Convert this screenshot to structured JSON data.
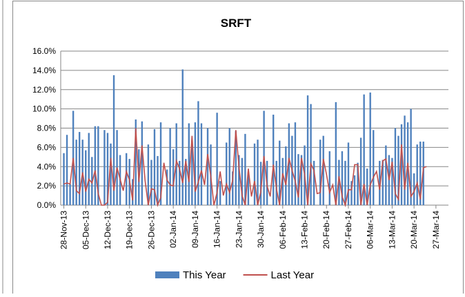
{
  "chart_data": {
    "type": "bar-line",
    "title": "SRFT",
    "x": [
      "2013-11-28",
      "2013-11-29",
      "2013-11-30",
      "2013-12-01",
      "2013-12-02",
      "2013-12-03",
      "2013-12-04",
      "2013-12-05",
      "2013-12-06",
      "2013-12-07",
      "2013-12-08",
      "2013-12-09",
      "2013-12-10",
      "2013-12-11",
      "2013-12-12",
      "2013-12-13",
      "2013-12-14",
      "2013-12-15",
      "2013-12-16",
      "2013-12-17",
      "2013-12-18",
      "2013-12-19",
      "2013-12-20",
      "2013-12-21",
      "2013-12-22",
      "2013-12-23",
      "2013-12-24",
      "2013-12-25",
      "2013-12-26",
      "2013-12-27",
      "2013-12-28",
      "2013-12-29",
      "2013-12-30",
      "2013-12-31",
      "2014-01-01",
      "2014-01-02",
      "2014-01-03",
      "2014-01-04",
      "2014-01-05",
      "2014-01-06",
      "2014-01-07",
      "2014-01-08",
      "2014-01-09",
      "2014-01-10",
      "2014-01-11",
      "2014-01-12",
      "2014-01-13",
      "2014-01-14",
      "2014-01-15",
      "2014-01-16",
      "2014-01-17",
      "2014-01-18",
      "2014-01-19",
      "2014-01-20",
      "2014-01-21",
      "2014-01-22",
      "2014-01-23",
      "2014-01-24",
      "2014-01-25",
      "2014-01-26",
      "2014-01-27",
      "2014-01-28",
      "2014-01-29",
      "2014-01-30",
      "2014-01-31",
      "2014-02-01",
      "2014-02-02",
      "2014-02-03",
      "2014-02-04",
      "2014-02-05",
      "2014-02-06",
      "2014-02-07",
      "2014-02-08",
      "2014-02-09",
      "2014-02-10",
      "2014-02-11",
      "2014-02-12",
      "2014-02-13",
      "2014-02-14",
      "2014-02-15",
      "2014-02-16",
      "2014-02-17",
      "2014-02-18",
      "2014-02-19",
      "2014-02-20",
      "2014-02-21",
      "2014-02-22",
      "2014-02-23",
      "2014-02-24",
      "2014-02-25",
      "2014-02-26",
      "2014-02-27",
      "2014-02-28",
      "2014-03-01",
      "2014-03-02",
      "2014-03-03",
      "2014-03-04",
      "2014-03-05",
      "2014-03-06",
      "2014-03-07",
      "2014-03-08",
      "2014-03-09",
      "2014-03-10",
      "2014-03-11",
      "2014-03-12",
      "2014-03-13",
      "2014-03-14",
      "2014-03-15",
      "2014-03-16",
      "2014-03-17",
      "2014-03-18",
      "2014-03-19",
      "2014-03-20",
      "2014-03-21",
      "2014-03-22",
      "2014-03-23",
      "2014-03-24"
    ],
    "series": [
      {
        "name": "This Year",
        "type": "bar",
        "color": "#4f81bd",
        "values": [
          5.4,
          7.3,
          2.2,
          9.8,
          6.8,
          7.6,
          6.8,
          5.7,
          7.5,
          5.0,
          8.2,
          8.2,
          0,
          7.8,
          7.5,
          6.4,
          13.5,
          7.8,
          5.2,
          0,
          5.4,
          4.8,
          2.7,
          8.9,
          5.8,
          8.7,
          0,
          6.3,
          4.7,
          7.9,
          5.1,
          8.6,
          0,
          3.7,
          8.0,
          5.8,
          8.5,
          4.6,
          14.1,
          4.8,
          8.5,
          6.7,
          8.6,
          10.8,
          8.5,
          0,
          8.0,
          6.3,
          0,
          9.6,
          2.5,
          0,
          6.5,
          8.0,
          3.5,
          7.7,
          5.2,
          4.9,
          7.4,
          3.4,
          0,
          6.4,
          6.8,
          4.5,
          9.8,
          4.6,
          0,
          9.4,
          4.6,
          6.7,
          4.9,
          6.1,
          8.5,
          7.2,
          8.6,
          5.3,
          5.2,
          6.2,
          11.4,
          10.5,
          4.6,
          0,
          6.8,
          7.2,
          0,
          5.6,
          0,
          10.7,
          4.7,
          5.6,
          4.6,
          6.5,
          2.5,
          3.1,
          4.4,
          7.0,
          11.5,
          3.8,
          11.7,
          7.8,
          0,
          4.6,
          4.7,
          6.2,
          5.2,
          4.9,
          8.0,
          7.2,
          8.4,
          9.3,
          8.6,
          10.0,
          3.3,
          6.3,
          6.6,
          6.6,
          0
        ]
      },
      {
        "name": "Last Year",
        "type": "line",
        "color": "#c0504d",
        "values": [
          2.2,
          2.3,
          2.2,
          4.9,
          1.5,
          1.2,
          3.4,
          1.4,
          2.7,
          2.3,
          3.6,
          1.2,
          0,
          0,
          0.3,
          4.9,
          1.5,
          3.9,
          2.7,
          1.5,
          3.5,
          2.6,
          0.5,
          8.0,
          2.4,
          6.2,
          2.5,
          0,
          1.7,
          1.6,
          0,
          0.8,
          4.4,
          2.6,
          2.1,
          2.0,
          4.6,
          3.8,
          2.3,
          4.6,
          2.4,
          7.2,
          1.4,
          2.4,
          3.6,
          2.1,
          5.3,
          3.0,
          0,
          1.3,
          3.5,
          1.0,
          2.2,
          1.3,
          2.6,
          7.8,
          4.0,
          1.0,
          0,
          3.8,
          0.9,
          2.5,
          0,
          1.4,
          5.1,
          2.0,
          0.9,
          4.2,
          1.7,
          0,
          3.3,
          2.1,
          4.9,
          3.6,
          2.5,
          0.8,
          4.9,
          3.2,
          0,
          4.3,
          3.6,
          1.2,
          1.3,
          4.8,
          3.2,
          1.3,
          2.1,
          0,
          3.0,
          0.9,
          0,
          1.6,
          1.6,
          4.2,
          4.2,
          0,
          2.2,
          0,
          2.1,
          2.9,
          3.5,
          1.6,
          4.6,
          4.8,
          2.6,
          4.5,
          1.2,
          0.6,
          6.3,
          1.6,
          4.4,
          0.9,
          1.4,
          2.3,
          0.6,
          3.9,
          4.0
        ]
      }
    ],
    "xlim": [
      "2013-11-27",
      "2014-03-31"
    ],
    "xticks": [
      {
        "value": "2013-11-28",
        "label": "28-Nov-13"
      },
      {
        "value": "2013-12-05",
        "label": "05-Dec-13"
      },
      {
        "value": "2013-12-12",
        "label": "12-Dec-13"
      },
      {
        "value": "2013-12-19",
        "label": "19-Dec-13"
      },
      {
        "value": "2013-12-26",
        "label": "26-Dec-13"
      },
      {
        "value": "2014-01-02",
        "label": "02-Jan-14"
      },
      {
        "value": "2014-01-09",
        "label": "09-Jan-14"
      },
      {
        "value": "2014-01-16",
        "label": "16-Jan-14"
      },
      {
        "value": "2014-01-23",
        "label": "23-Jan-14"
      },
      {
        "value": "2014-01-30",
        "label": "30-Jan-14"
      },
      {
        "value": "2014-02-06",
        "label": "06-Feb-14"
      },
      {
        "value": "2014-02-13",
        "label": "13-Feb-14"
      },
      {
        "value": "2014-02-20",
        "label": "20-Feb-14"
      },
      {
        "value": "2014-02-27",
        "label": "27-Feb-14"
      },
      {
        "value": "2014-03-06",
        "label": "06-Mar-14"
      },
      {
        "value": "2014-03-13",
        "label": "13-Mar-14"
      },
      {
        "value": "2014-03-20",
        "label": "20-Mar-14"
      },
      {
        "value": "2014-03-27",
        "label": "27-Mar-14"
      }
    ],
    "ylim": [
      0,
      16
    ],
    "yticks": [
      {
        "value": 0,
        "label": "0.0%"
      },
      {
        "value": 2,
        "label": "2.0%"
      },
      {
        "value": 4,
        "label": "4.0%"
      },
      {
        "value": 6,
        "label": "6.0%"
      },
      {
        "value": 8,
        "label": "8.0%"
      },
      {
        "value": 10,
        "label": "10.0%"
      },
      {
        "value": 12,
        "label": "12.0%"
      },
      {
        "value": 14,
        "label": "14.0%"
      },
      {
        "value": 16,
        "label": "16.0%"
      }
    ],
    "grid": true,
    "legend": "bottom"
  }
}
